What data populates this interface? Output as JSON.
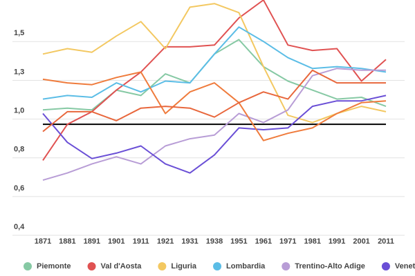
{
  "chart_data": {
    "type": "line",
    "categories": [
      "1871",
      "1881",
      "1891",
      "1901",
      "1911",
      "1921",
      "1931",
      "1938",
      "1951",
      "1961",
      "1971",
      "1981",
      "1991",
      "2001",
      "2011"
    ],
    "series": [
      {
        "name": "Piemonte",
        "color": "#86c9a4",
        "values": [
          1.05,
          1.06,
          1.05,
          1.16,
          1.13,
          1.25,
          1.2,
          1.36,
          1.44,
          1.29,
          1.21,
          1.16,
          1.11,
          1.12,
          1.07
        ]
      },
      {
        "name": "Val d'Aosta",
        "color": "#e05252",
        "values": [
          0.77,
          0.97,
          1.04,
          1.16,
          1.26,
          1.4,
          1.4,
          1.41,
          1.56,
          1.66,
          1.41,
          1.38,
          1.39,
          1.21,
          1.33
        ]
      },
      {
        "name": "Liguria",
        "color": "#f3c861",
        "values": [
          1.36,
          1.39,
          1.37,
          1.46,
          1.54,
          1.39,
          1.62,
          1.64,
          1.59,
          1.29,
          1.02,
          0.98,
          1.03,
          1.07,
          1.04
        ]
      },
      {
        "name": "Lombardia",
        "color": "#5bbde6",
        "values": [
          1.11,
          1.13,
          1.12,
          1.2,
          1.15,
          1.21,
          1.2,
          1.36,
          1.51,
          1.43,
          1.34,
          1.28,
          1.29,
          1.28,
          1.26
        ]
      },
      {
        "name": "Trentino-Alto Adige",
        "color": "#b89dd6",
        "values": [
          0.66,
          0.7,
          0.75,
          0.79,
          0.75,
          0.85,
          0.89,
          0.91,
          1.03,
          0.98,
          1.05,
          1.24,
          1.28,
          1.27,
          1.27
        ]
      },
      {
        "name": "Veneto",
        "color": "#6a4fd6",
        "values": [
          1.03,
          0.87,
          0.78,
          0.81,
          0.85,
          0.75,
          0.7,
          0.8,
          0.95,
          0.94,
          0.95,
          1.07,
          1.1,
          1.1,
          1.13
        ]
      },
      {
        "color": "#ef7b3c",
        "values": [
          1.22,
          1.2,
          1.19,
          1.23,
          1.26,
          1.03,
          1.15,
          1.2,
          1.09,
          0.88,
          0.92,
          0.95,
          1.03,
          1.09,
          1.1
        ]
      },
      {
        "color": "#e8673c",
        "values": [
          0.93,
          1.04,
          1.04,
          0.99,
          1.06,
          1.07,
          1.06,
          1.01,
          1.09,
          1.15,
          1.11,
          1.27,
          1.2,
          1.2,
          1.2
        ]
      }
    ],
    "reference_line": {
      "value": 0.97,
      "color": "#000000"
    },
    "ylim": [
      0.4,
      1.66
    ],
    "yticks": [
      {
        "value": 0.4,
        "label": "0,4"
      },
      {
        "value": 0.615,
        "label": "0,6"
      },
      {
        "value": 0.83,
        "label": "0,8"
      },
      {
        "value": 1.045,
        "label": "1,0"
      },
      {
        "value": 1.26,
        "label": "1,3"
      },
      {
        "value": 1.475,
        "label": "1,5"
      }
    ],
    "grid": true
  }
}
